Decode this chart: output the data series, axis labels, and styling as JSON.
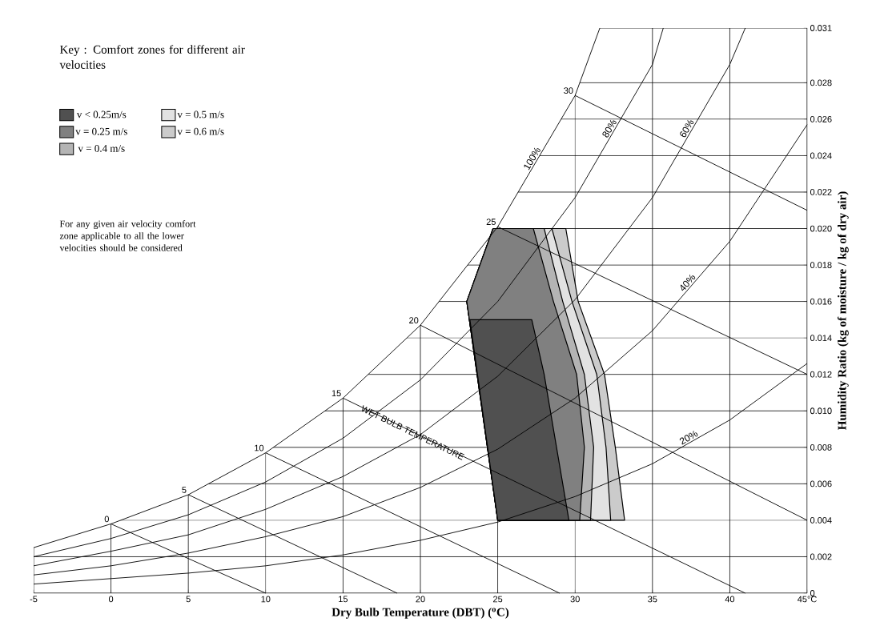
{
  "chart_data": {
    "type": "line",
    "xlabel": "Dry Bulb Temperature (DBT) ($^{o}$C)",
    "ylabel": "Humidity Ratio (kg of moisture / kg of dry air)",
    "legend_title": "Key : Comfort zones for different air velocities",
    "annotations": [
      "For any given air velocity comfort zone applicable to all the lower velocities should be considered",
      {
        "text": "WET BULB TEMPERATURE",
        "x": 19.5,
        "y": 0.0088
      }
    ],
    "xlim": [
      -5,
      45
    ],
    "ylim": [
      0,
      0.031
    ],
    "xticks": [
      -5,
      0,
      5,
      10,
      15,
      20,
      25,
      30,
      35,
      40,
      {
        "value": 45,
        "label": "45°C"
      }
    ],
    "yticks": [
      0,
      0.002,
      0.004,
      0.006,
      0.008,
      {
        "value": 0.01,
        "label": "0.010"
      },
      0.012,
      0.014,
      0.016,
      0.018,
      {
        "value": 0.02,
        "label": "0.020"
      },
      0.022,
      0.024,
      0.026,
      0.028,
      0.031
    ],
    "grid": true,
    "legend": "top left",
    "marker": "none",
    "line_style": "solid",
    "series": [
      {
        "name": "100%",
        "color": "#000000",
        "x": [
          -5,
          0,
          5,
          10,
          15,
          20,
          25,
          30,
          31.6
        ],
        "values": [
          0.0025,
          0.0038,
          0.0054,
          0.0077,
          0.0107,
          0.0147,
          0.0201,
          0.0273,
          0.031
        ]
      },
      {
        "name": "80%",
        "color": "#000000",
        "x": [
          -5,
          0,
          5,
          10,
          15,
          20,
          25,
          30,
          35,
          35.7
        ],
        "values": [
          0.002,
          0.003,
          0.0043,
          0.0061,
          0.0085,
          0.0117,
          0.016,
          0.0217,
          0.029,
          0.031
        ]
      },
      {
        "name": "60%",
        "color": "#000000",
        "x": [
          -5,
          0,
          5,
          10,
          15,
          20,
          25,
          30,
          35,
          40,
          41
        ],
        "values": [
          0.0015,
          0.0023,
          0.0032,
          0.0046,
          0.0064,
          0.0087,
          0.0119,
          0.0161,
          0.0217,
          0.029,
          0.031
        ]
      },
      {
        "name": "40%",
        "color": "#000000",
        "x": [
          -5,
          0,
          5,
          10,
          15,
          20,
          25,
          30,
          35,
          40,
          45
        ],
        "values": [
          0.001,
          0.0015,
          0.0022,
          0.0031,
          0.0042,
          0.0058,
          0.0079,
          0.0107,
          0.0144,
          0.0193,
          0.0257
        ]
      },
      {
        "name": "20%",
        "color": "#000000",
        "x": [
          -5,
          0,
          5,
          10,
          15,
          20,
          25,
          30,
          35,
          40,
          45
        ],
        "values": [
          0.0005,
          0.0008,
          0.0011,
          0.0015,
          0.0021,
          0.0029,
          0.0039,
          0.0053,
          0.0071,
          0.0095,
          0.0126
        ]
      },
      {
        "name": "0",
        "color": "#000000",
        "x": [
          0,
          10
        ],
        "values": [
          0.0038,
          0
        ]
      },
      {
        "name": "5",
        "color": "#000000",
        "x": [
          5,
          18.5
        ],
        "values": [
          0.0054,
          0
        ]
      },
      {
        "name": "10",
        "color": "#000000",
        "x": [
          10,
          29
        ],
        "values": [
          0.0077,
          0
        ]
      },
      {
        "name": "15",
        "color": "#000000",
        "x": [
          15,
          41
        ],
        "values": [
          0.0107,
          0
        ]
      },
      {
        "name": "20",
        "color": "#000000",
        "x": [
          20,
          45
        ],
        "values": [
          0.0147,
          0.004
        ]
      },
      {
        "name": "25",
        "color": "#000000",
        "x": [
          25,
          45
        ],
        "values": [
          0.0201,
          0.012
        ]
      },
      {
        "name": "30",
        "color": "#000000",
        "x": [
          30,
          45
        ],
        "values": [
          0.0273,
          0.021
        ]
      },
      {
        "name": "v < 0.25m/s",
        "type": "area",
        "color": "#505050",
        "x": [
          25,
          23.2,
          27.2,
          28.0,
          29.6
        ],
        "values": [
          0.004,
          0.015,
          0.015,
          0.012,
          0.004
        ]
      },
      {
        "name": "v = 0.25 m/s",
        "type": "area",
        "color": "#808080",
        "x": [
          25,
          23.0,
          24.7,
          27.3,
          28.6,
          30.1,
          30.6,
          30.3
        ],
        "values": [
          0.004,
          0.016,
          0.02,
          0.02,
          0.016,
          0.012,
          0.008,
          0.004
        ]
      },
      {
        "name": "v = 0.4 m/s",
        "type": "area",
        "color": "#b4b4b4",
        "x": [
          25,
          23.0,
          24.7,
          28.0,
          29.2,
          30.6,
          31.2,
          31.0
        ],
        "values": [
          0.004,
          0.016,
          0.02,
          0.02,
          0.016,
          0.012,
          0.008,
          0.004
        ]
      },
      {
        "name": "v = 0.5 m/s",
        "type": "area",
        "color": "#e2e2e2",
        "x": [
          25,
          23.0,
          24.7,
          28.5,
          29.8,
          31.4,
          32.0,
          32.3
        ],
        "values": [
          0.004,
          0.016,
          0.02,
          0.02,
          0.016,
          0.012,
          0.008,
          0.004
        ]
      },
      {
        "name": "v = 0.6 m/s",
        "type": "area",
        "color": "#cbcbcb",
        "x": [
          25,
          23.0,
          24.7,
          29.4,
          30.2,
          31.9,
          32.6,
          33.2
        ],
        "values": [
          0.004,
          0.016,
          0.02,
          0.02,
          0.016,
          0.012,
          0.008,
          0.004
        ]
      }
    ]
  }
}
